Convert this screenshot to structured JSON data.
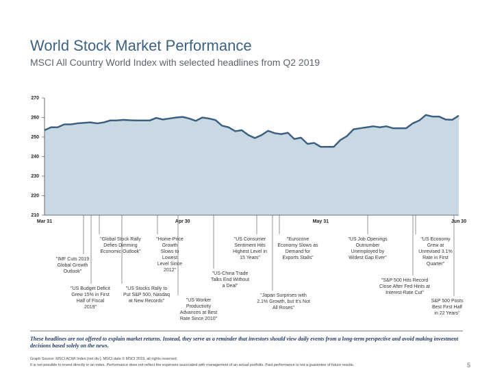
{
  "chart_data": {
    "type": "area",
    "title": "World Stock Market Performance",
    "subtitle": "MSCI All Country World Index with selected headlines from Q2 2019",
    "categories": [
      "Mar 31",
      null,
      null,
      null,
      null,
      null,
      null,
      null,
      null,
      null,
      null,
      null,
      null,
      null,
      null,
      null,
      null,
      null,
      null,
      null,
      null,
      "Apr 30",
      null,
      null,
      null,
      null,
      null,
      null,
      null,
      null,
      null,
      null,
      null,
      null,
      null,
      null,
      null,
      null,
      null,
      null,
      null,
      null,
      "May 31",
      null,
      null,
      null,
      null,
      null,
      null,
      null,
      null,
      null,
      null,
      null,
      null,
      null,
      null,
      null,
      null,
      null,
      null,
      null,
      null,
      "Jun 30"
    ],
    "values": [
      253.5,
      255,
      255,
      256.5,
      256.5,
      257,
      257.3,
      257.5,
      257,
      257.5,
      258.5,
      258.5,
      258.8,
      258.6,
      258.5,
      258.5,
      258.5,
      259.8,
      259,
      259.5,
      260,
      260.3,
      259.5,
      258.3,
      260,
      259.5,
      258.7,
      255.8,
      255,
      253,
      253.5,
      251,
      249.5,
      251,
      253.2,
      252,
      251.5,
      252.2,
      249,
      249.7,
      246.5,
      247,
      245,
      245,
      245,
      248.5,
      250.5,
      254,
      254.5,
      255,
      255.5,
      255,
      255.5,
      254.5,
      254.5,
      254.5,
      257,
      258.5,
      261.3,
      260.5,
      260.5,
      259,
      258.8,
      261
    ],
    "color": "#3d5f7f",
    "fill": "#c9d9e4",
    "ylim": [
      210,
      270
    ],
    "yticks": [
      210,
      220,
      230,
      240,
      250,
      260,
      270
    ],
    "annotations": [
      "\"IMF Cuts 2019 Global Growth Outlook\"",
      "\"US Budget Deficit Grew 15% in First Half of Fiscal 2019\"",
      "\"Global Stock Rally Defies Dimming Economic Outlook\"",
      "\"US Stocks Rally to Put S&P 500, Nasdaq at New Records\"",
      "\"Home-Price Growth Slows to Lowest Level Since 2012\"",
      "\"US Worker Productivity Advances at Best Rate Since 2010\"",
      "\"US-China Trade Talks End Without a Deal\"",
      "\"US Consumer Sentiment Hits Highest Level in 15 Years\"",
      "\"Japan Surprises with 2.1% Growth, but It's Not All Roses\"",
      "\"Eurozone Economy Slows as Demand for Exports Stalls\"",
      "\"US Job Openings Outnumber Unemployed by Widest Gap Ever\"",
      "\"S&P 500 Hits Record Close After Fed Hints at Interest-Rate Cut\"",
      "\"US Economy Grew at Unrevised 3.1% Rate in First Quarter\"",
      "S&P 500 Posts Best First Half in 22 Years\""
    ],
    "note": "These headlines are not offered to explain market returns. Instead, they serve as a reminder that investors should view daily events from a long-term perspective and avoid making investment decisions based solely on the news.",
    "source": "Graph Source: MSCI ACWI Index [net div.]. MSCI data © MSCI 2019, all rights reserved.",
    "disclaimer": "It is not possible to invest directly in an index. Performance does not reflect the expenses associated with management of an actual portfolio. Past performance is not a guarantee of future results.",
    "page_number": "5"
  }
}
